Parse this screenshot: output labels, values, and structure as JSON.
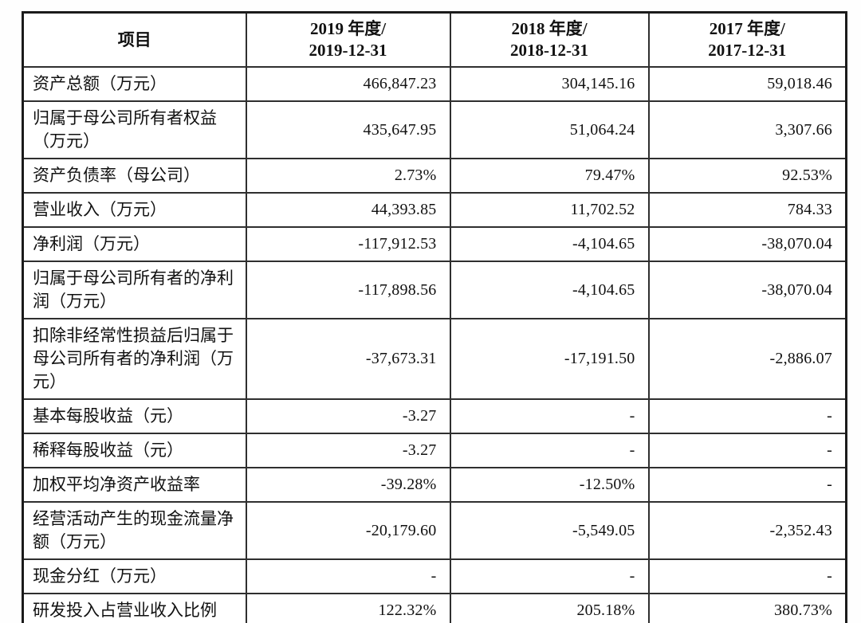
{
  "page": {
    "background_color": "#fefefe",
    "text_color": "#111111",
    "border_color": "#1b1b1b"
  },
  "table": {
    "header": {
      "item_label": "项目",
      "period_columns": [
        {
          "line1": "2019 年度/",
          "line2": "2019-12-31"
        },
        {
          "line1": "2018 年度/",
          "line2": "2018-12-31"
        },
        {
          "line1": "2017 年度/",
          "line2": "2017-12-31"
        }
      ]
    },
    "rows": [
      {
        "label": "资产总额（万元）",
        "values": [
          "466,847.23",
          "304,145.16",
          "59,018.46"
        ]
      },
      {
        "label": "归属于母公司所有者权益（万元）",
        "values": [
          "435,647.95",
          "51,064.24",
          "3,307.66"
        ]
      },
      {
        "label": "资产负债率（母公司）",
        "values": [
          "2.73%",
          "79.47%",
          "92.53%"
        ]
      },
      {
        "label": "营业收入（万元）",
        "values": [
          "44,393.85",
          "11,702.52",
          "784.33"
        ]
      },
      {
        "label": "净利润（万元）",
        "values": [
          "-117,912.53",
          "-4,104.65",
          "-38,070.04"
        ]
      },
      {
        "label": "归属于母公司所有者的净利润（万元）",
        "values": [
          "-117,898.56",
          "-4,104.65",
          "-38,070.04"
        ]
      },
      {
        "label": "扣除非经常性损益后归属于母公司所有者的净利润（万元）",
        "values": [
          "-37,673.31",
          "-17,191.50",
          "-2,886.07"
        ]
      },
      {
        "label": "基本每股收益（元）",
        "values": [
          "-3.27",
          "-",
          "-"
        ]
      },
      {
        "label": "稀释每股收益（元）",
        "values": [
          "-3.27",
          "-",
          "-"
        ]
      },
      {
        "label": "加权平均净资产收益率",
        "values": [
          "-39.28%",
          "-12.50%",
          "-"
        ]
      },
      {
        "label": "经营活动产生的现金流量净额（万元）",
        "values": [
          "-20,179.60",
          "-5,549.05",
          "-2,352.43"
        ]
      },
      {
        "label": "现金分红（万元）",
        "values": [
          "-",
          "-",
          "-"
        ]
      },
      {
        "label": "研发投入占营业收入比例",
        "values": [
          "122.32%",
          "205.18%",
          "380.73%"
        ]
      }
    ]
  }
}
